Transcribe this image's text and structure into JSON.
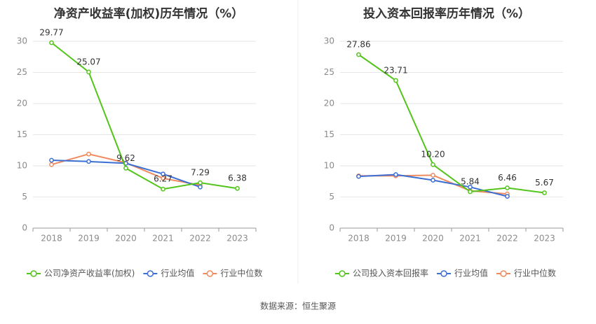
{
  "source": "数据来源：恒生聚源",
  "charts": [
    {
      "type": "line",
      "title": "净资产收益率(加权)历年情况（%）",
      "categories": [
        "2018",
        "2019",
        "2020",
        "2021",
        "2022",
        "2023"
      ],
      "y_ticks": [
        "0",
        "5",
        "10",
        "15",
        "20",
        "25",
        "30"
      ],
      "ylim": [
        0,
        30
      ],
      "grid": true,
      "legend_position": "bottom",
      "series": [
        {
          "name": "公司净资产收益率(加权)",
          "color": "#52c41a",
          "values": [
            29.77,
            25.07,
            9.62,
            6.27,
            7.29,
            6.38
          ],
          "labels": [
            "29.77",
            "25.07",
            "9.62",
            "6.27",
            "7.29",
            "6.38"
          ]
        },
        {
          "name": "行业均值",
          "color": "#3b6fd4",
          "values": [
            10.9,
            10.7,
            10.4,
            8.7,
            6.6,
            null
          ]
        },
        {
          "name": "行业中位数",
          "color": "#f08a5d",
          "values": [
            10.2,
            11.9,
            10.5,
            8.0,
            6.9,
            null
          ]
        }
      ]
    },
    {
      "type": "line",
      "title": "投入资本回报率历年情况（%）",
      "categories": [
        "2018",
        "2019",
        "2020",
        "2021",
        "2022",
        "2023"
      ],
      "y_ticks": [
        "0",
        "5",
        "10",
        "15",
        "20",
        "25",
        "30"
      ],
      "ylim": [
        0,
        30
      ],
      "grid": true,
      "legend_position": "bottom",
      "series": [
        {
          "name": "公司投入资本回报率",
          "color": "#52c41a",
          "values": [
            27.86,
            23.71,
            10.2,
            5.84,
            6.46,
            5.67
          ],
          "labels": [
            "27.86",
            "23.71",
            "10.20",
            "5.84",
            "6.46",
            "5.67"
          ]
        },
        {
          "name": "行业均值",
          "color": "#3b6fd4",
          "values": [
            8.3,
            8.6,
            7.7,
            6.6,
            5.1,
            null
          ]
        },
        {
          "name": "行业中位数",
          "color": "#f08a5d",
          "values": [
            8.4,
            8.4,
            8.5,
            6.0,
            5.5,
            null
          ]
        }
      ]
    }
  ]
}
